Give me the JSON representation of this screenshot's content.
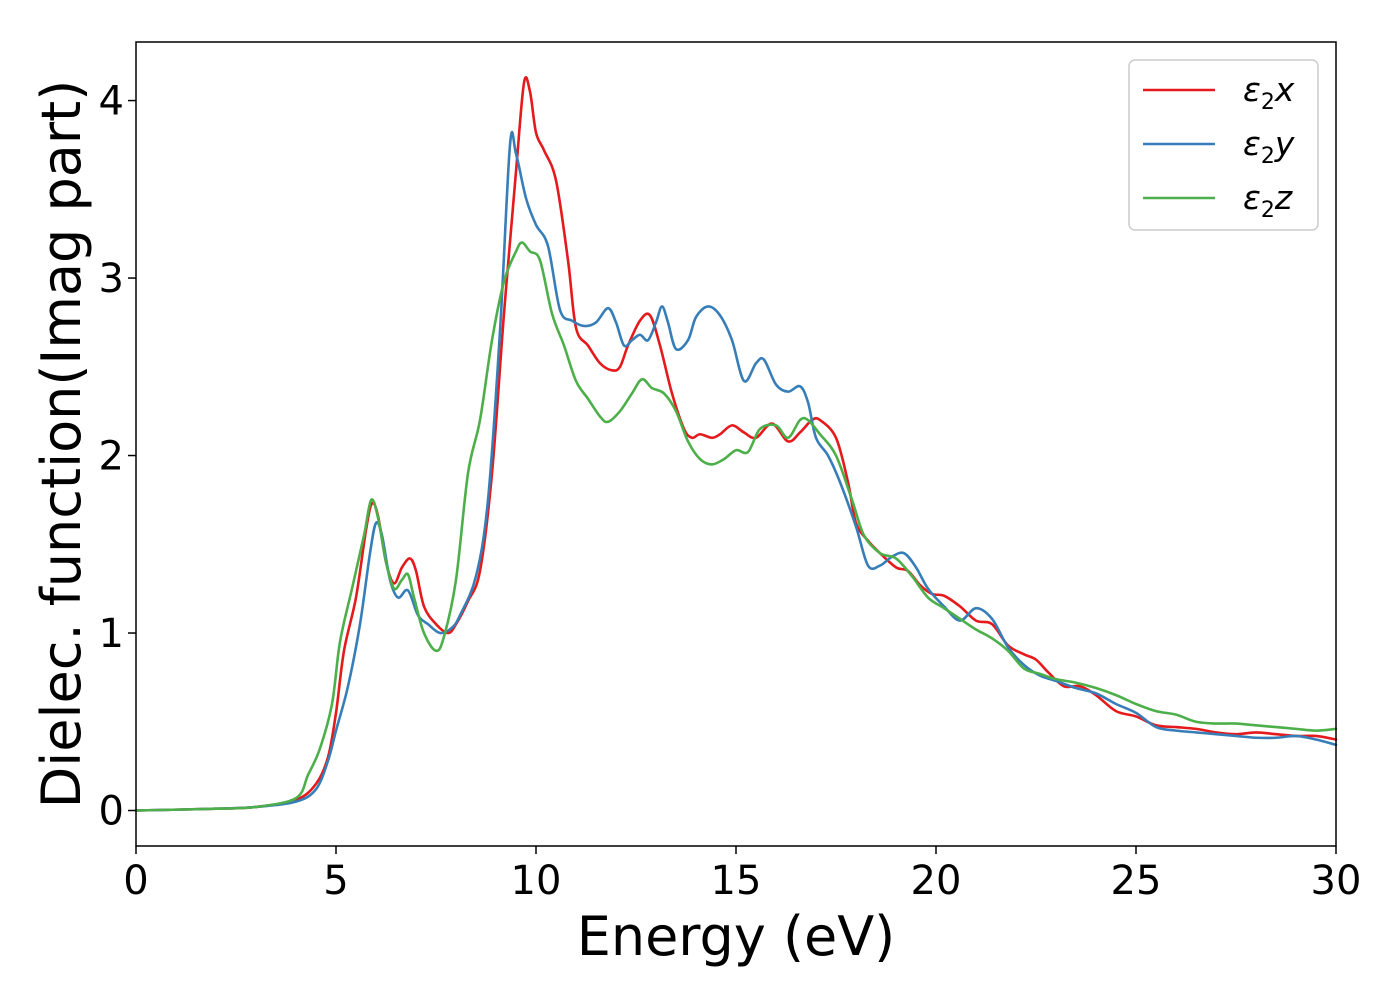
{
  "chart_data": {
    "type": "line",
    "xlabel": "Energy (eV)",
    "ylabel": "Dielec. function(Imag part)",
    "xlim": [
      0,
      30
    ],
    "ylim": [
      -0.2,
      4.33
    ],
    "xticks": [
      "0",
      "5",
      "10",
      "15",
      "20",
      "25",
      "30"
    ],
    "yticks": [
      "0",
      "1",
      "2",
      "3",
      "4"
    ],
    "grid": false,
    "legend_position": "top-right",
    "series": [
      {
        "name": "ε2x",
        "legend_main": "ε",
        "legend_sub": "2",
        "legend_tail": "x",
        "color": "#e41a1c",
        "points": [
          [
            0,
            0
          ],
          [
            2,
            0.01
          ],
          [
            3,
            0.02
          ],
          [
            4,
            0.06
          ],
          [
            4.5,
            0.15
          ],
          [
            4.8,
            0.3
          ],
          [
            5,
            0.55
          ],
          [
            5.2,
            0.9
          ],
          [
            5.5,
            1.2
          ],
          [
            5.75,
            1.58
          ],
          [
            5.9,
            1.73
          ],
          [
            6.05,
            1.66
          ],
          [
            6.25,
            1.4
          ],
          [
            6.45,
            1.28
          ],
          [
            6.65,
            1.37
          ],
          [
            6.85,
            1.42
          ],
          [
            7,
            1.35
          ],
          [
            7.2,
            1.15
          ],
          [
            7.5,
            1.05
          ],
          [
            7.8,
            1.0
          ],
          [
            8,
            1.05
          ],
          [
            8.3,
            1.18
          ],
          [
            8.6,
            1.35
          ],
          [
            8.9,
            1.9
          ],
          [
            9.2,
            2.8
          ],
          [
            9.5,
            3.6
          ],
          [
            9.7,
            4.1
          ],
          [
            9.85,
            4.05
          ],
          [
            10,
            3.82
          ],
          [
            10.2,
            3.72
          ],
          [
            10.5,
            3.55
          ],
          [
            10.8,
            3.1
          ],
          [
            11,
            2.72
          ],
          [
            11.3,
            2.62
          ],
          [
            11.6,
            2.52
          ],
          [
            11.9,
            2.48
          ],
          [
            12.1,
            2.5
          ],
          [
            12.3,
            2.62
          ],
          [
            12.6,
            2.76
          ],
          [
            12.85,
            2.79
          ],
          [
            13.1,
            2.62
          ],
          [
            13.4,
            2.35
          ],
          [
            13.7,
            2.15
          ],
          [
            13.9,
            2.1
          ],
          [
            14.1,
            2.12
          ],
          [
            14.4,
            2.1
          ],
          [
            14.6,
            2.12
          ],
          [
            14.9,
            2.17
          ],
          [
            15.2,
            2.13
          ],
          [
            15.5,
            2.1
          ],
          [
            15.9,
            2.18
          ],
          [
            16.3,
            2.08
          ],
          [
            16.6,
            2.13
          ],
          [
            16.9,
            2.2
          ],
          [
            17.1,
            2.2
          ],
          [
            17.5,
            2.1
          ],
          [
            17.8,
            1.85
          ],
          [
            18,
            1.62
          ],
          [
            18.3,
            1.52
          ],
          [
            18.6,
            1.45
          ],
          [
            19,
            1.37
          ],
          [
            19.3,
            1.35
          ],
          [
            19.6,
            1.27
          ],
          [
            19.9,
            1.22
          ],
          [
            20.2,
            1.21
          ],
          [
            20.6,
            1.15
          ],
          [
            21,
            1.07
          ],
          [
            21.4,
            1.05
          ],
          [
            21.8,
            0.93
          ],
          [
            22.2,
            0.88
          ],
          [
            22.5,
            0.85
          ],
          [
            22.8,
            0.78
          ],
          [
            23.2,
            0.7
          ],
          [
            23.6,
            0.7
          ],
          [
            24,
            0.65
          ],
          [
            24.5,
            0.56
          ],
          [
            25,
            0.53
          ],
          [
            25.5,
            0.48
          ],
          [
            26,
            0.47
          ],
          [
            26.5,
            0.46
          ],
          [
            27,
            0.44
          ],
          [
            27.5,
            0.43
          ],
          [
            28,
            0.44
          ],
          [
            28.5,
            0.43
          ],
          [
            29,
            0.42
          ],
          [
            29.5,
            0.42
          ],
          [
            30,
            0.4
          ]
        ]
      },
      {
        "name": "ε2y",
        "legend_main": "ε",
        "legend_sub": "2",
        "legend_tail": "y",
        "color": "#377eb8",
        "points": [
          [
            0,
            0
          ],
          [
            2,
            0.01
          ],
          [
            3,
            0.02
          ],
          [
            4,
            0.05
          ],
          [
            4.5,
            0.12
          ],
          [
            4.8,
            0.28
          ],
          [
            5,
            0.45
          ],
          [
            5.3,
            0.7
          ],
          [
            5.6,
            1.05
          ],
          [
            5.85,
            1.45
          ],
          [
            6,
            1.62
          ],
          [
            6.15,
            1.55
          ],
          [
            6.35,
            1.3
          ],
          [
            6.55,
            1.2
          ],
          [
            6.8,
            1.24
          ],
          [
            7.05,
            1.1
          ],
          [
            7.3,
            1.05
          ],
          [
            7.6,
            1.0
          ],
          [
            7.9,
            1.03
          ],
          [
            8.1,
            1.1
          ],
          [
            8.5,
            1.32
          ],
          [
            8.8,
            1.75
          ],
          [
            9.1,
            2.7
          ],
          [
            9.35,
            3.75
          ],
          [
            9.5,
            3.7
          ],
          [
            9.75,
            3.45
          ],
          [
            10,
            3.3
          ],
          [
            10.3,
            3.18
          ],
          [
            10.6,
            2.82
          ],
          [
            10.9,
            2.76
          ],
          [
            11.2,
            2.73
          ],
          [
            11.5,
            2.75
          ],
          [
            11.8,
            2.83
          ],
          [
            12,
            2.75
          ],
          [
            12.2,
            2.62
          ],
          [
            12.4,
            2.65
          ],
          [
            12.6,
            2.68
          ],
          [
            12.8,
            2.65
          ],
          [
            13,
            2.75
          ],
          [
            13.15,
            2.84
          ],
          [
            13.3,
            2.75
          ],
          [
            13.5,
            2.6
          ],
          [
            13.8,
            2.65
          ],
          [
            14,
            2.78
          ],
          [
            14.3,
            2.84
          ],
          [
            14.6,
            2.79
          ],
          [
            14.9,
            2.65
          ],
          [
            15.2,
            2.42
          ],
          [
            15.5,
            2.52
          ],
          [
            15.7,
            2.54
          ],
          [
            16,
            2.4
          ],
          [
            16.3,
            2.36
          ],
          [
            16.6,
            2.39
          ],
          [
            16.8,
            2.3
          ],
          [
            17,
            2.1
          ],
          [
            17.3,
            2.0
          ],
          [
            17.6,
            1.85
          ],
          [
            18,
            1.6
          ],
          [
            18.3,
            1.38
          ],
          [
            18.6,
            1.38
          ],
          [
            18.9,
            1.43
          ],
          [
            19.2,
            1.45
          ],
          [
            19.5,
            1.37
          ],
          [
            19.8,
            1.25
          ],
          [
            20.2,
            1.15
          ],
          [
            20.6,
            1.07
          ],
          [
            21,
            1.14
          ],
          [
            21.4,
            1.08
          ],
          [
            21.8,
            0.92
          ],
          [
            22.2,
            0.82
          ],
          [
            22.6,
            0.76
          ],
          [
            23,
            0.73
          ],
          [
            23.5,
            0.69
          ],
          [
            24,
            0.66
          ],
          [
            24.5,
            0.6
          ],
          [
            25,
            0.55
          ],
          [
            25.5,
            0.47
          ],
          [
            26,
            0.45
          ],
          [
            26.5,
            0.44
          ],
          [
            27,
            0.43
          ],
          [
            27.5,
            0.42
          ],
          [
            28,
            0.41
          ],
          [
            28.5,
            0.41
          ],
          [
            29,
            0.42
          ],
          [
            29.5,
            0.4
          ],
          [
            30,
            0.37
          ]
        ]
      },
      {
        "name": "ε2z",
        "legend_main": "ε",
        "legend_sub": "2",
        "legend_tail": "z",
        "color": "#4daf4a",
        "points": [
          [
            0,
            0
          ],
          [
            2,
            0.01
          ],
          [
            3,
            0.02
          ],
          [
            4,
            0.07
          ],
          [
            4.3,
            0.2
          ],
          [
            4.6,
            0.35
          ],
          [
            4.9,
            0.6
          ],
          [
            5.1,
            0.95
          ],
          [
            5.4,
            1.25
          ],
          [
            5.7,
            1.55
          ],
          [
            5.88,
            1.75
          ],
          [
            6.05,
            1.65
          ],
          [
            6.25,
            1.4
          ],
          [
            6.45,
            1.25
          ],
          [
            6.65,
            1.3
          ],
          [
            6.8,
            1.33
          ],
          [
            6.95,
            1.2
          ],
          [
            7.2,
            1.0
          ],
          [
            7.5,
            0.9
          ],
          [
            7.7,
            0.98
          ],
          [
            8,
            1.3
          ],
          [
            8.3,
            1.9
          ],
          [
            8.6,
            2.2
          ],
          [
            8.9,
            2.65
          ],
          [
            9.2,
            2.98
          ],
          [
            9.5,
            3.15
          ],
          [
            9.65,
            3.2
          ],
          [
            9.85,
            3.15
          ],
          [
            10.1,
            3.1
          ],
          [
            10.4,
            2.8
          ],
          [
            10.7,
            2.62
          ],
          [
            11,
            2.42
          ],
          [
            11.3,
            2.32
          ],
          [
            11.6,
            2.22
          ],
          [
            11.8,
            2.19
          ],
          [
            12.1,
            2.25
          ],
          [
            12.4,
            2.35
          ],
          [
            12.65,
            2.43
          ],
          [
            12.9,
            2.38
          ],
          [
            13.2,
            2.35
          ],
          [
            13.5,
            2.25
          ],
          [
            13.8,
            2.08
          ],
          [
            14.1,
            1.98
          ],
          [
            14.4,
            1.95
          ],
          [
            14.7,
            1.98
          ],
          [
            15,
            2.03
          ],
          [
            15.3,
            2.02
          ],
          [
            15.6,
            2.15
          ],
          [
            16,
            2.17
          ],
          [
            16.3,
            2.1
          ],
          [
            16.6,
            2.2
          ],
          [
            16.8,
            2.2
          ],
          [
            17.1,
            2.12
          ],
          [
            17.5,
            2.0
          ],
          [
            17.9,
            1.75
          ],
          [
            18.2,
            1.55
          ],
          [
            18.6,
            1.45
          ],
          [
            19,
            1.42
          ],
          [
            19.4,
            1.32
          ],
          [
            19.8,
            1.2
          ],
          [
            20.2,
            1.14
          ],
          [
            20.6,
            1.08
          ],
          [
            21,
            1.02
          ],
          [
            21.4,
            0.97
          ],
          [
            21.8,
            0.9
          ],
          [
            22.2,
            0.8
          ],
          [
            22.6,
            0.77
          ],
          [
            23,
            0.74
          ],
          [
            23.5,
            0.72
          ],
          [
            24,
            0.69
          ],
          [
            24.5,
            0.65
          ],
          [
            25,
            0.6
          ],
          [
            25.5,
            0.56
          ],
          [
            26,
            0.54
          ],
          [
            26.5,
            0.5
          ],
          [
            27,
            0.49
          ],
          [
            27.5,
            0.49
          ],
          [
            28,
            0.48
          ],
          [
            28.5,
            0.47
          ],
          [
            29,
            0.46
          ],
          [
            29.5,
            0.45
          ],
          [
            30,
            0.46
          ]
        ]
      }
    ]
  }
}
